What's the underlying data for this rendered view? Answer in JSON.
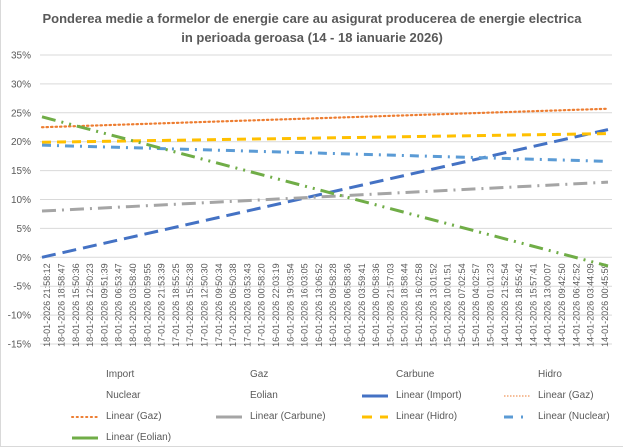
{
  "chart_data": {
    "type": "line",
    "title_line1": "Ponderea medie a formelor de energie care au asigurat producerea de energie electrica",
    "title_line2": "in perioada geroasa (14 - 18 ianuarie 2026)",
    "xlabel": "",
    "ylabel": "",
    "ylim": [
      -0.15,
      0.35
    ],
    "yticks": [
      0.35,
      0.3,
      0.25,
      0.2,
      0.15,
      0.1,
      0.05,
      0.0,
      -0.05,
      -0.1,
      -0.15
    ],
    "ytick_labels": [
      "35%",
      "30%",
      "25%",
      "20%",
      "15%",
      "10%",
      "5%",
      "0%",
      "-5%",
      "-10%",
      "-15%"
    ],
    "grid": true,
    "legend_position": "bottom",
    "categories": [
      "18-01-2026 21:58:12",
      "18-01-2026 18:58:47",
      "18-01-2026 15:50:36",
      "18-01-2026 12:50:23",
      "18-01-2026 09:51:39",
      "18-01-2026 06:53:47",
      "18-01-2026 03:58:40",
      "18-01-2026 00:59:55",
      "17-01-2026 21:53:39",
      "17-01-2026 18:55:25",
      "17-01-2026 15:52:38",
      "17-01-2026 12:50:30",
      "17-01-2026 09:50:34",
      "17-01-2026 06:50:38",
      "17-01-2026 03:53:43",
      "17-01-2026 00:58:20",
      "16-01-2026 22:03:19",
      "16-01-2026 19:03:54",
      "16-01-2026 16:03:05",
      "16-01-2026 13:06:52",
      "16-01-2026 09:58:28",
      "16-01-2026 06:58:36",
      "16-01-2026 03:59:41",
      "16-01-2026 00:58:36",
      "15-01-2026 21:57:03",
      "15-01-2026 18:58:44",
      "15-01-2026 16:02:58",
      "15-01-2026 13:01:52",
      "15-01-2026 10:01:51",
      "15-01-2026 07:02:54",
      "15-01-2026 04:02:57",
      "15-01-2026 01:01:23",
      "14-01-2026 21:52:54",
      "14-01-2026 18:55:42",
      "14-01-2026 15:57:41",
      "14-01-2026 13:00:07",
      "14-01-2026 09:42:50",
      "14-01-2026 06:42:52",
      "14-01-2026 03:44:09",
      "14-01-2026 00:45:59"
    ],
    "series": [
      {
        "name": "Linear (Import)",
        "kind": "trendline",
        "start": 0.0,
        "end": 0.221,
        "color": "#4472c4",
        "dash": "long-dash"
      },
      {
        "name": "Linear (Gaz)",
        "kind": "trendline",
        "start": 0.225,
        "end": 0.257,
        "color": "#ed7d31",
        "dash": "round-dot"
      },
      {
        "name": "Linear (Carbune)",
        "kind": "trendline",
        "start": 0.08,
        "end": 0.13,
        "color": "#a5a5a5",
        "dash": "long-dash-dot"
      },
      {
        "name": "Linear (Hidro)",
        "kind": "trendline",
        "start": 0.199,
        "end": 0.214,
        "color": "#ffc000",
        "dash": "dash"
      },
      {
        "name": "Linear (Nuclear)",
        "kind": "trendline",
        "start": 0.194,
        "end": 0.166,
        "color": "#5b9bd5",
        "dash": "dash-dot"
      },
      {
        "name": "Linear (Eolian)",
        "kind": "trendline",
        "start": 0.243,
        "end": -0.015,
        "color": "#70ad47",
        "dash": "long-dash-dot-dot"
      }
    ]
  },
  "legend": {
    "rows": [
      [
        {
          "label": "Import",
          "swatch": "none"
        },
        {
          "label": "Gaz",
          "swatch": "none"
        },
        {
          "label": "Carbune",
          "swatch": "none"
        },
        {
          "label": "Hidro",
          "swatch": "none"
        }
      ],
      [
        {
          "label": "Nuclear",
          "swatch": "none"
        },
        {
          "label": "Eolian",
          "swatch": "none"
        },
        {
          "label": "Linear (Import)",
          "swatch": "solid",
          "color": "#4472c4"
        },
        {
          "label": "Linear (Gaz)",
          "swatch": "fine-dot",
          "color": "#ed7d31"
        }
      ],
      [
        {
          "label": "Linear (Gaz)",
          "swatch": "round-dot",
          "color": "#ed7d31"
        },
        {
          "label": "Linear (Carbune)",
          "swatch": "solid",
          "color": "#a5a5a5"
        },
        {
          "label": "Linear (Hidro)",
          "swatch": "dash",
          "color": "#ffc000"
        },
        {
          "label": "Linear (Nuclear)",
          "swatch": "dash-dot",
          "color": "#5b9bd5"
        }
      ],
      [
        {
          "label": "Linear (Eolian)",
          "swatch": "solid",
          "color": "#70ad47"
        }
      ]
    ]
  }
}
